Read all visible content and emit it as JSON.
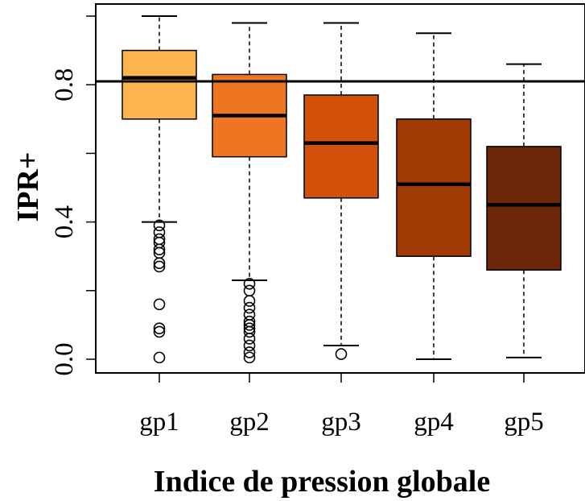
{
  "chart_data": {
    "type": "box",
    "xlabel": "Indice de pression globale",
    "ylabel": "IPR+",
    "categories": [
      "gp1",
      "gp2",
      "gp3",
      "gp4",
      "gp5"
    ],
    "y_ticks": [
      "0.0",
      "0.4",
      "0.8"
    ],
    "y_tick_values": [
      0.0,
      0.4,
      0.8
    ],
    "ylim": [
      -0.04,
      1.04
    ],
    "reference_line": 0.81,
    "boxes": [
      {
        "name": "gp1",
        "whisker_low": 0.4,
        "q1": 0.7,
        "median": 0.82,
        "q3": 0.9,
        "whisker_high": 1.0,
        "color": "#fdb64e",
        "outliers": [
          0.39,
          0.37,
          0.35,
          0.34,
          0.32,
          0.31,
          0.28,
          0.27,
          0.16,
          0.09,
          0.08,
          0.005
        ]
      },
      {
        "name": "gp2",
        "whisker_low": 0.23,
        "q1": 0.59,
        "median": 0.71,
        "q3": 0.83,
        "whisker_high": 0.98,
        "color": "#ee7622",
        "outliers": [
          0.22,
          0.2,
          0.17,
          0.15,
          0.13,
          0.11,
          0.1,
          0.09,
          0.08,
          0.06,
          0.04,
          0.02,
          0.005
        ]
      },
      {
        "name": "gp3",
        "whisker_low": 0.04,
        "q1": 0.47,
        "median": 0.63,
        "q3": 0.77,
        "whisker_high": 0.98,
        "color": "#d2510a",
        "outliers": [
          0.015
        ]
      },
      {
        "name": "gp4",
        "whisker_low": 0.0,
        "q1": 0.3,
        "median": 0.51,
        "q3": 0.7,
        "whisker_high": 0.95,
        "color": "#a13a03",
        "outliers": []
      },
      {
        "name": "gp5",
        "whisker_low": 0.005,
        "q1": 0.26,
        "median": 0.45,
        "q3": 0.62,
        "whisker_high": 0.86,
        "color": "#6b2707",
        "outliers": []
      }
    ]
  }
}
